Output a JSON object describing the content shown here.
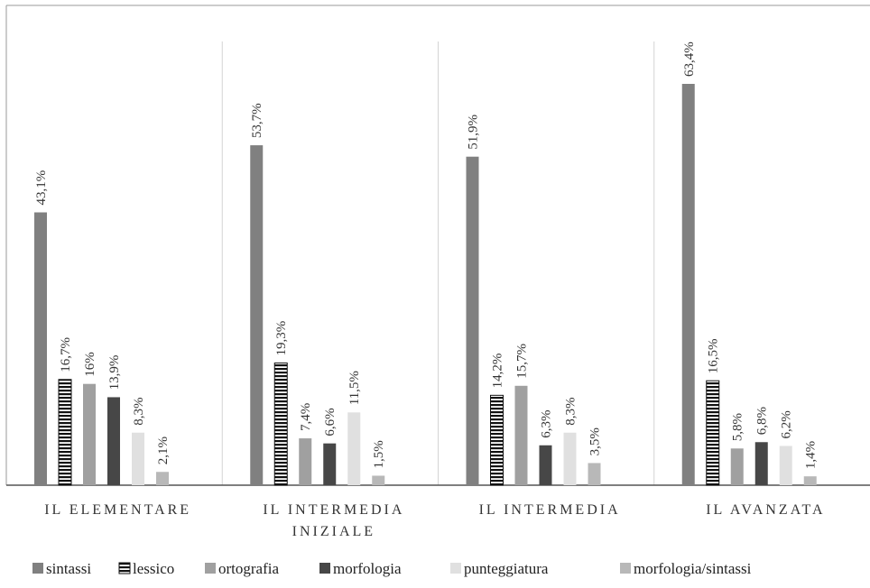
{
  "chart_data": {
    "type": "bar",
    "title": "",
    "xlabel": "",
    "ylabel": "",
    "ylim": [
      0,
      70
    ],
    "grid": false,
    "legend_position": "bottom",
    "value_suffix": "%",
    "categories": [
      [
        "IL ELEMENTARE"
      ],
      [
        "IL INTERMEDIA",
        "INIZIALE"
      ],
      [
        "IL INTERMEDIA"
      ],
      [
        "IL AVANZATA"
      ]
    ],
    "series": [
      {
        "name": "sintassi",
        "color": "#808080",
        "pattern": "solid",
        "values": [
          43.1,
          53.7,
          51.9,
          63.4
        ],
        "labels": [
          "43,1%",
          "53,7%",
          "51,9%",
          "63,4%"
        ]
      },
      {
        "name": "lessico",
        "color": "#111111",
        "pattern": "horizontal-stripes",
        "values": [
          16.7,
          19.3,
          14.2,
          16.5
        ],
        "labels": [
          "16,7%",
          "19,3%",
          "14,2%",
          "16,5%"
        ]
      },
      {
        "name": "ortografia",
        "color": "#a0a0a0",
        "pattern": "solid",
        "values": [
          16,
          7.4,
          15.7,
          5.8
        ],
        "labels": [
          "16%",
          "7,4%",
          "15,7%",
          "5,8%"
        ]
      },
      {
        "name": "morfologia",
        "color": "#474747",
        "pattern": "solid",
        "values": [
          13.9,
          6.6,
          6.3,
          6.8
        ],
        "labels": [
          "13,9%",
          "6,6%",
          "6,3%",
          "6,8%"
        ]
      },
      {
        "name": "punteggiatura",
        "color": "#e0e0e0",
        "pattern": "solid",
        "values": [
          8.3,
          11.5,
          8.3,
          6.2
        ],
        "labels": [
          "8,3%",
          "11,5%",
          "8,3%",
          "6,2%"
        ]
      },
      {
        "name": "morfologia/sintassi",
        "color": "#b8b8b8",
        "pattern": "solid",
        "values": [
          2.1,
          1.5,
          3.5,
          1.4
        ],
        "labels": [
          "2,1%",
          "1,5%",
          "3,5%",
          "1,4%"
        ]
      }
    ]
  }
}
